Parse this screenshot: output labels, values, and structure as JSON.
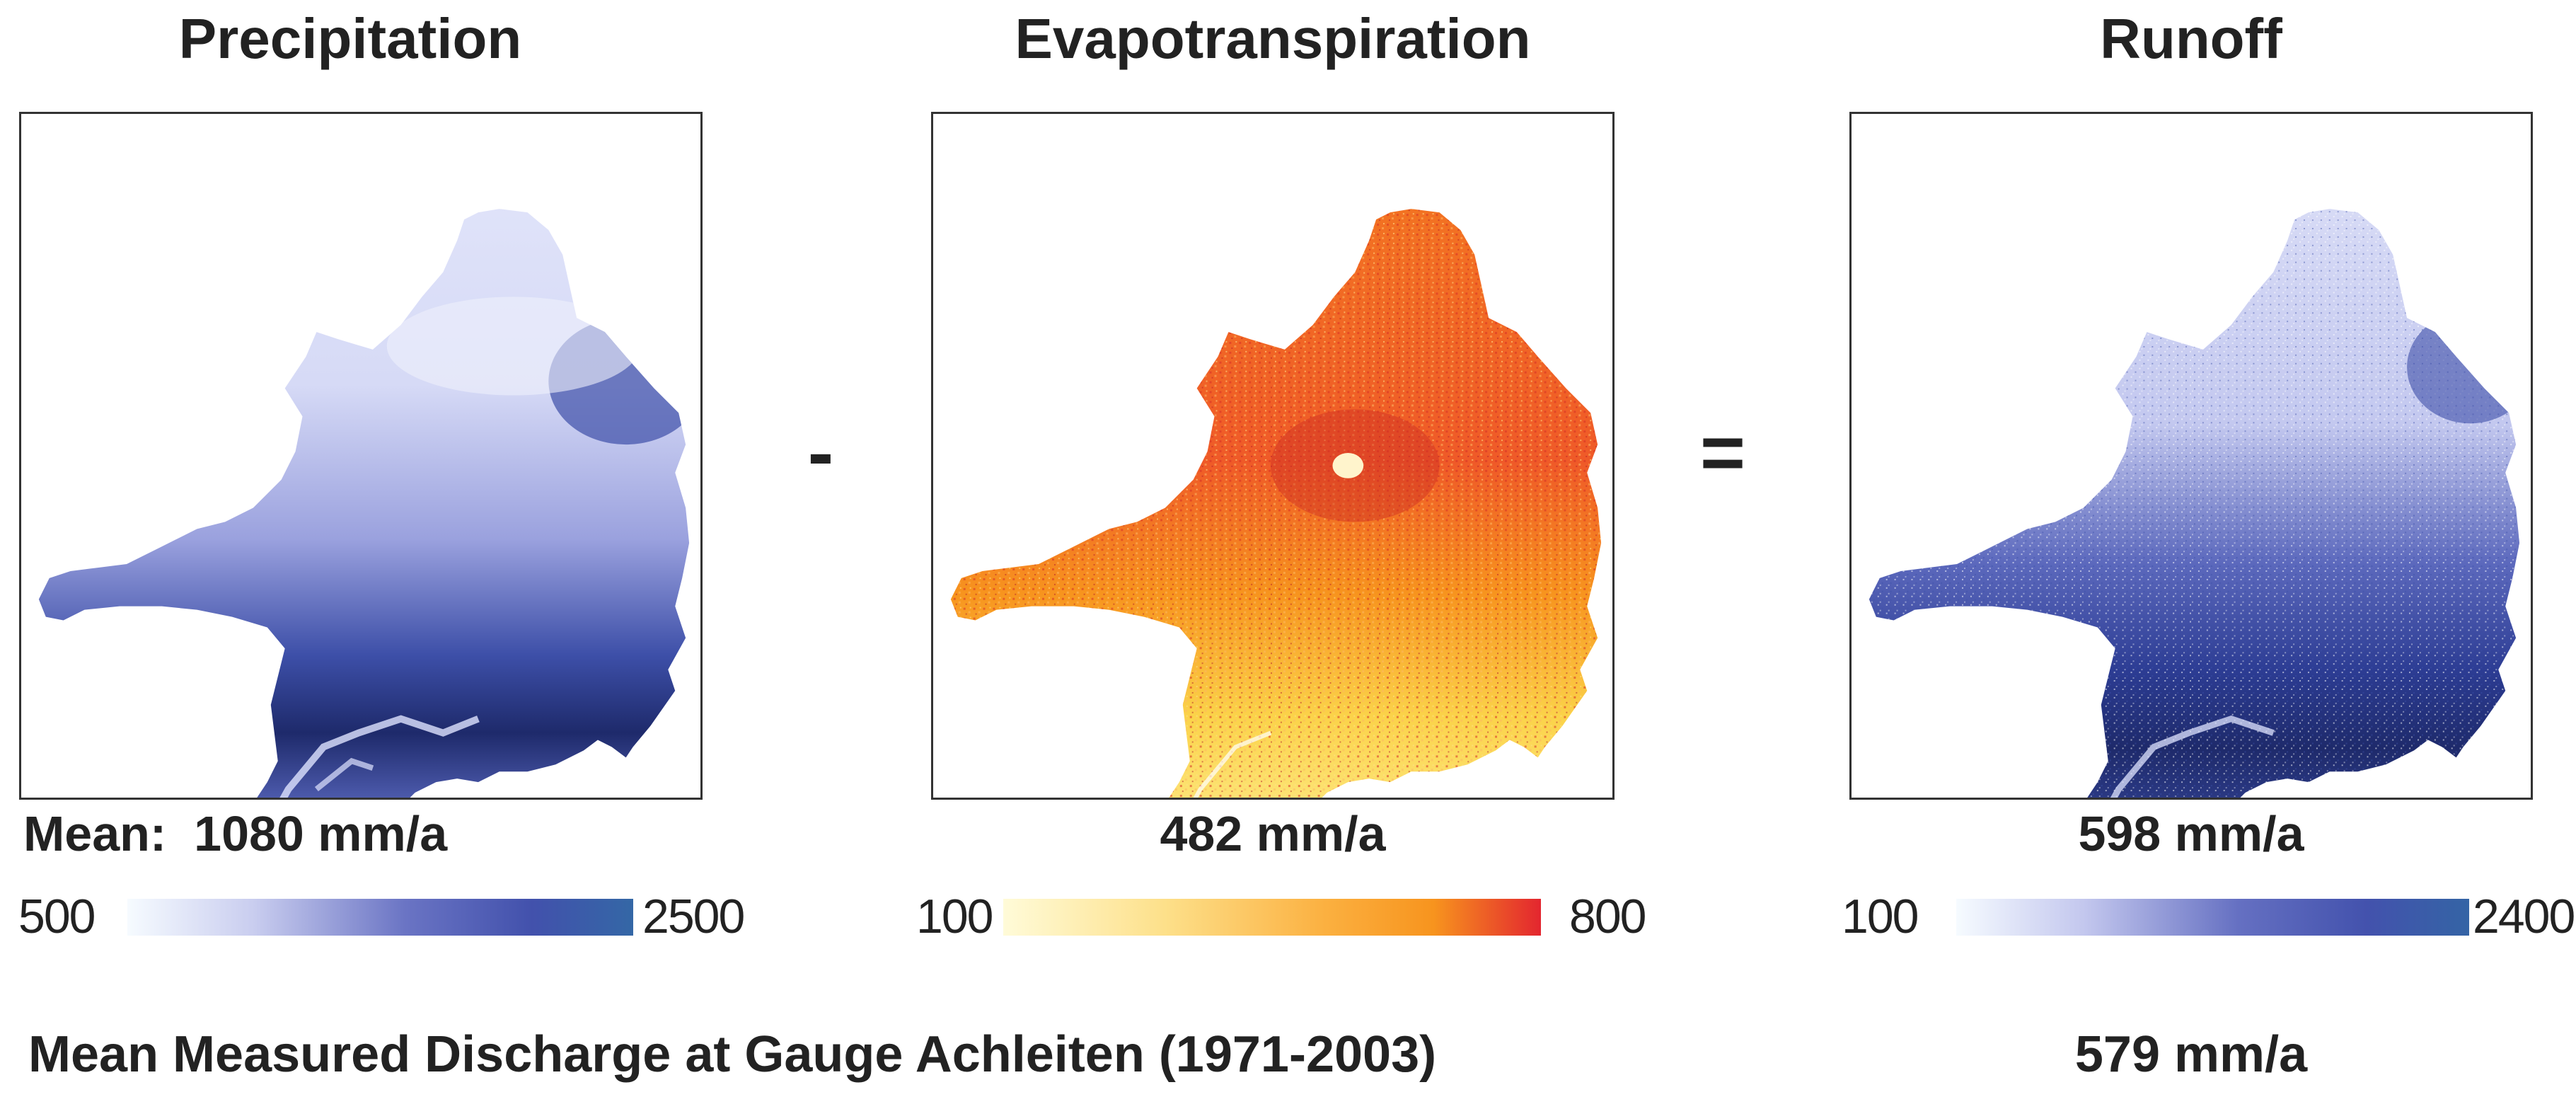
{
  "panels": [
    {
      "title": "Precipitation",
      "mean_text": "Mean:  1080 mm/a",
      "scale_min": "500",
      "scale_max": "2500"
    },
    {
      "title": "Evapotranspiration",
      "mean_text": "482 mm/a",
      "scale_min": "100",
      "scale_max": "800"
    },
    {
      "title": "Runoff",
      "mean_text": "598 mm/a",
      "scale_min": "100",
      "scale_max": "2400"
    }
  ],
  "operators": {
    "minus": "-",
    "equals": "="
  },
  "footer": {
    "label": "Mean Measured Discharge at Gauge Achleiten (1971-2003)",
    "value": "579 mm/a"
  },
  "colors": {
    "precip_low": "#f3f5ff",
    "precip_mid": "#8c92d4",
    "precip_high": "#3d4fa8",
    "precip_dark": "#1e2a6b",
    "et_low": "#fff9c8",
    "et_mid": "#f7941e",
    "et_high": "#e03a2e",
    "runoff_low": "#f3f5ff",
    "runoff_mid": "#7d84cc",
    "runoff_high": "#3652a6",
    "runoff_dark": "#1e2a6b",
    "text": "#222222"
  }
}
